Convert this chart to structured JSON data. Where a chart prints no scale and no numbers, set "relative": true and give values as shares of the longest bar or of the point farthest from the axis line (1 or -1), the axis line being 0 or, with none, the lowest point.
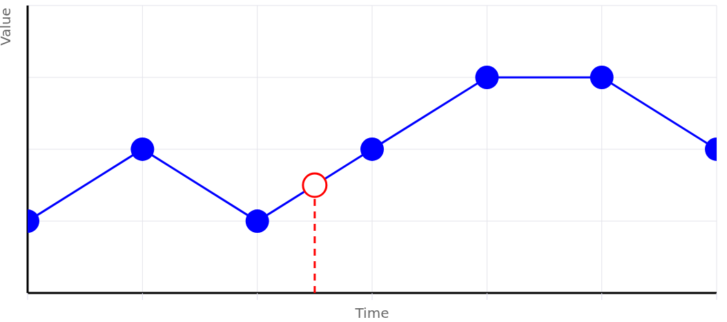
{
  "chart_data": {
    "type": "line",
    "xlabel": "Time",
    "ylabel": "Value",
    "relative": true,
    "categories": [
      null,
      null,
      null,
      null,
      null,
      null,
      null
    ],
    "series": [
      {
        "color": "#0000ff",
        "values": [
          0.333,
          0.667,
          0.333,
          0.667,
          1,
          1,
          0.667
        ]
      }
    ],
    "marker": "circle",
    "grid": true
  }
}
